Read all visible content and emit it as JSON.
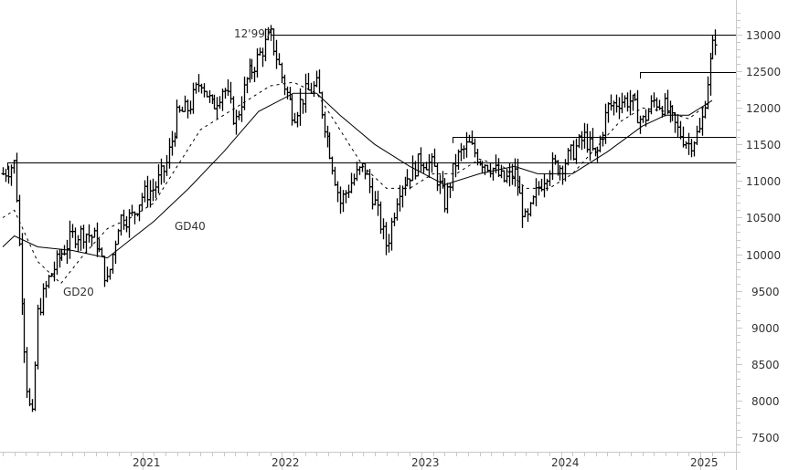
{
  "chart_data": {
    "type": "ohlc",
    "title": "",
    "xlabel": "",
    "ylabel": "",
    "ylim": [
      7300,
      13300
    ],
    "y_ticks": [
      7500,
      8000,
      8500,
      9000,
      9500,
      10000,
      10500,
      11000,
      11500,
      12000,
      12500,
      13000
    ],
    "x_tick_labels": [
      "2021",
      "2022",
      "2023",
      "2024",
      "2025"
    ],
    "grid": false,
    "legend": null,
    "frequency": "weekly",
    "annotations": [
      {
        "text": "12'997",
        "value": 12997,
        "type": "horizontal_line_label"
      },
      {
        "text": "GD20",
        "type": "series_label",
        "series": "GD20"
      },
      {
        "text": "GD40",
        "type": "series_label",
        "series": "GD40"
      }
    ],
    "horizontal_lines": [
      {
        "value": 12997,
        "from": "2021-12"
      },
      {
        "value": 12480,
        "from": "2024-07"
      },
      {
        "value": 11600,
        "from": "2023-03"
      },
      {
        "value": 11250,
        "from": "2020-01"
      }
    ],
    "series": [
      {
        "name": "Price (weekly OHLC bars)",
        "style": "bar",
        "color": "#000000",
        "approx_path": [
          {
            "t": "2020-01",
            "v": 11100
          },
          {
            "t": "2020-02",
            "v": 11250
          },
          {
            "t": "2020-03",
            "v": 8300
          },
          {
            "t": "2020-03b",
            "v": 7650
          },
          {
            "t": "2020-04",
            "v": 9200
          },
          {
            "t": "2020-05",
            "v": 9700
          },
          {
            "t": "2020-06",
            "v": 10000
          },
          {
            "t": "2020-07",
            "v": 10250
          },
          {
            "t": "2020-08",
            "v": 10300
          },
          {
            "t": "2020-09",
            "v": 10200
          },
          {
            "t": "2020-10",
            "v": 9600
          },
          {
            "t": "2020-11",
            "v": 10500
          },
          {
            "t": "2020-12",
            "v": 10500
          },
          {
            "t": "2021-01",
            "v": 10800
          },
          {
            "t": "2021-02",
            "v": 10900
          },
          {
            "t": "2021-03",
            "v": 11200
          },
          {
            "t": "2021-04",
            "v": 11900
          },
          {
            "t": "2021-05",
            "v": 12000
          },
          {
            "t": "2021-06",
            "v": 12400
          },
          {
            "t": "2021-07",
            "v": 12000
          },
          {
            "t": "2021-08",
            "v": 12300
          },
          {
            "t": "2021-09",
            "v": 11800
          },
          {
            "t": "2021-10",
            "v": 12400
          },
          {
            "t": "2021-11",
            "v": 12700
          },
          {
            "t": "2021-12",
            "v": 12997
          },
          {
            "t": "2022-01",
            "v": 12400
          },
          {
            "t": "2022-02",
            "v": 11900
          },
          {
            "t": "2022-03",
            "v": 12200
          },
          {
            "t": "2022-04",
            "v": 12300
          },
          {
            "t": "2022-05",
            "v": 11500
          },
          {
            "t": "2022-06",
            "v": 10700
          },
          {
            "t": "2022-07",
            "v": 11000
          },
          {
            "t": "2022-08",
            "v": 11200
          },
          {
            "t": "2022-09",
            "v": 10700
          },
          {
            "t": "2022-10",
            "v": 10100
          },
          {
            "t": "2022-11",
            "v": 10900
          },
          {
            "t": "2022-12",
            "v": 11100
          },
          {
            "t": "2023-01",
            "v": 11300
          },
          {
            "t": "2023-02",
            "v": 11200
          },
          {
            "t": "2023-03",
            "v": 10700
          },
          {
            "t": "2023-04",
            "v": 11300
          },
          {
            "t": "2023-05",
            "v": 11500
          },
          {
            "t": "2023-06",
            "v": 11300
          },
          {
            "t": "2023-07",
            "v": 11200
          },
          {
            "t": "2023-08",
            "v": 11000
          },
          {
            "t": "2023-09",
            "v": 11100
          },
          {
            "t": "2023-10",
            "v": 10400
          },
          {
            "t": "2023-11",
            "v": 10900
          },
          {
            "t": "2023-12",
            "v": 11200
          },
          {
            "t": "2024-01",
            "v": 11200
          },
          {
            "t": "2024-02",
            "v": 11400
          },
          {
            "t": "2024-03",
            "v": 11600
          },
          {
            "t": "2024-04",
            "v": 11300
          },
          {
            "t": "2024-05",
            "v": 12000
          },
          {
            "t": "2024-06",
            "v": 12100
          },
          {
            "t": "2024-07",
            "v": 12100
          },
          {
            "t": "2024-08",
            "v": 11800
          },
          {
            "t": "2024-09",
            "v": 12100
          },
          {
            "t": "2024-10",
            "v": 12000
          },
          {
            "t": "2024-11",
            "v": 11700
          },
          {
            "t": "2024-12",
            "v": 11500
          },
          {
            "t": "2025-01",
            "v": 11700
          },
          {
            "t": "2025-01b",
            "v": 12300
          },
          {
            "t": "2025-02",
            "v": 12800
          },
          {
            "t": "2025-02b",
            "v": 13100
          }
        ]
      },
      {
        "name": "GD20",
        "style": "dashed",
        "color": "#000000",
        "approx_path": [
          {
            "t": "2020-01",
            "v": 10500
          },
          {
            "t": "2020-02",
            "v": 10600
          },
          {
            "t": "2020-04",
            "v": 9900
          },
          {
            "t": "2020-06",
            "v": 9600
          },
          {
            "t": "2020-08",
            "v": 10000
          },
          {
            "t": "2020-10",
            "v": 10350
          },
          {
            "t": "2020-12",
            "v": 10500
          },
          {
            "t": "2021-02",
            "v": 10700
          },
          {
            "t": "2021-04",
            "v": 11200
          },
          {
            "t": "2021-06",
            "v": 11700
          },
          {
            "t": "2021-08",
            "v": 11900
          },
          {
            "t": "2021-10",
            "v": 12100
          },
          {
            "t": "2021-12",
            "v": 12300
          },
          {
            "t": "2022-02",
            "v": 12350
          },
          {
            "t": "2022-04",
            "v": 12200
          },
          {
            "t": "2022-06",
            "v": 11700
          },
          {
            "t": "2022-08",
            "v": 11200
          },
          {
            "t": "2022-10",
            "v": 10900
          },
          {
            "t": "2022-12",
            "v": 10900
          },
          {
            "t": "2023-02",
            "v": 11100
          },
          {
            "t": "2023-04",
            "v": 11100
          },
          {
            "t": "2023-06",
            "v": 11300
          },
          {
            "t": "2023-08",
            "v": 11200
          },
          {
            "t": "2023-10",
            "v": 10900
          },
          {
            "t": "2023-12",
            "v": 10900
          },
          {
            "t": "2024-02",
            "v": 11100
          },
          {
            "t": "2024-04",
            "v": 11450
          },
          {
            "t": "2024-06",
            "v": 11800
          },
          {
            "t": "2024-08",
            "v": 12000
          },
          {
            "t": "2024-10",
            "v": 11950
          },
          {
            "t": "2024-12",
            "v": 11850
          },
          {
            "t": "2025-02",
            "v": 12100
          }
        ]
      },
      {
        "name": "GD40",
        "style": "solid",
        "color": "#000000",
        "approx_path": [
          {
            "t": "2020-01",
            "v": 10100
          },
          {
            "t": "2020-02",
            "v": 10250
          },
          {
            "t": "2020-04",
            "v": 10100
          },
          {
            "t": "2020-07",
            "v": 10050
          },
          {
            "t": "2020-10",
            "v": 9950
          },
          {
            "t": "2020-12",
            "v": 10200
          },
          {
            "t": "2021-02",
            "v": 10450
          },
          {
            "t": "2021-05",
            "v": 10900
          },
          {
            "t": "2021-08",
            "v": 11400
          },
          {
            "t": "2021-11",
            "v": 11950
          },
          {
            "t": "2022-02",
            "v": 12200
          },
          {
            "t": "2022-04",
            "v": 12200
          },
          {
            "t": "2022-06",
            "v": 11900
          },
          {
            "t": "2022-09",
            "v": 11500
          },
          {
            "t": "2022-12",
            "v": 11200
          },
          {
            "t": "2023-03",
            "v": 10950
          },
          {
            "t": "2023-06",
            "v": 11100
          },
          {
            "t": "2023-09",
            "v": 11200
          },
          {
            "t": "2023-11",
            "v": 11100
          },
          {
            "t": "2024-02",
            "v": 11100
          },
          {
            "t": "2024-05",
            "v": 11400
          },
          {
            "t": "2024-08",
            "v": 11750
          },
          {
            "t": "2024-10",
            "v": 11900
          },
          {
            "t": "2024-12",
            "v": 11900
          },
          {
            "t": "2025-02",
            "v": 12100
          }
        ]
      }
    ]
  },
  "axis": {
    "y_labels": [
      "13000",
      "12500",
      "12000",
      "11500",
      "11000",
      "10500",
      "10000",
      "9500",
      "9000",
      "8500",
      "8000",
      "7500"
    ],
    "x_labels": [
      "2021",
      "2022",
      "2023",
      "2024",
      "2025"
    ]
  },
  "labels": {
    "high_value": "12'997",
    "gd20": "GD20",
    "gd40": "GD40"
  },
  "colors": {
    "price": "#000000",
    "axis": "#c8c8c8",
    "text": "#333333",
    "background": "#ffffff"
  }
}
